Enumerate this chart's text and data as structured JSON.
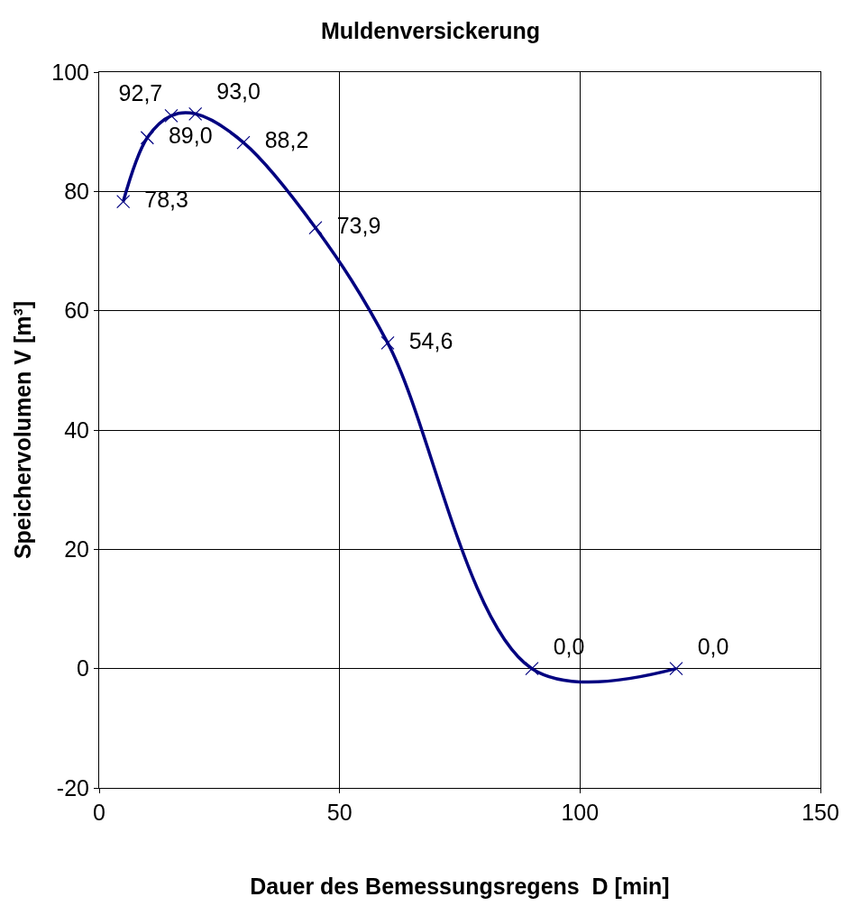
{
  "chart_data": {
    "type": "line",
    "title": "Muldenversickerung",
    "xlabel": "Dauer des Bemessungsregens  D [min]",
    "ylabel": "Speichervolumen V [m³]",
    "x": [
      5,
      10,
      15,
      20,
      30,
      45,
      60,
      90,
      120
    ],
    "series": [
      {
        "color": "#000080",
        "values": [
          78.3,
          89.0,
          92.7,
          93.0,
          88.2,
          73.9,
          54.6,
          0.0,
          0.0
        ],
        "value_labels": [
          "78,3",
          "89,0",
          "92,7",
          "93,0",
          "88,2",
          "73,9",
          "54,6",
          "0,0",
          "0,0"
        ]
      }
    ],
    "xlim": [
      0,
      150
    ],
    "xticks": [
      0,
      50,
      100,
      150
    ],
    "ylim": [
      -20,
      100
    ],
    "yticks": [
      -20,
      0,
      20,
      40,
      60,
      80,
      100
    ],
    "grid": true,
    "marker": "cross",
    "line_style": "solid"
  }
}
